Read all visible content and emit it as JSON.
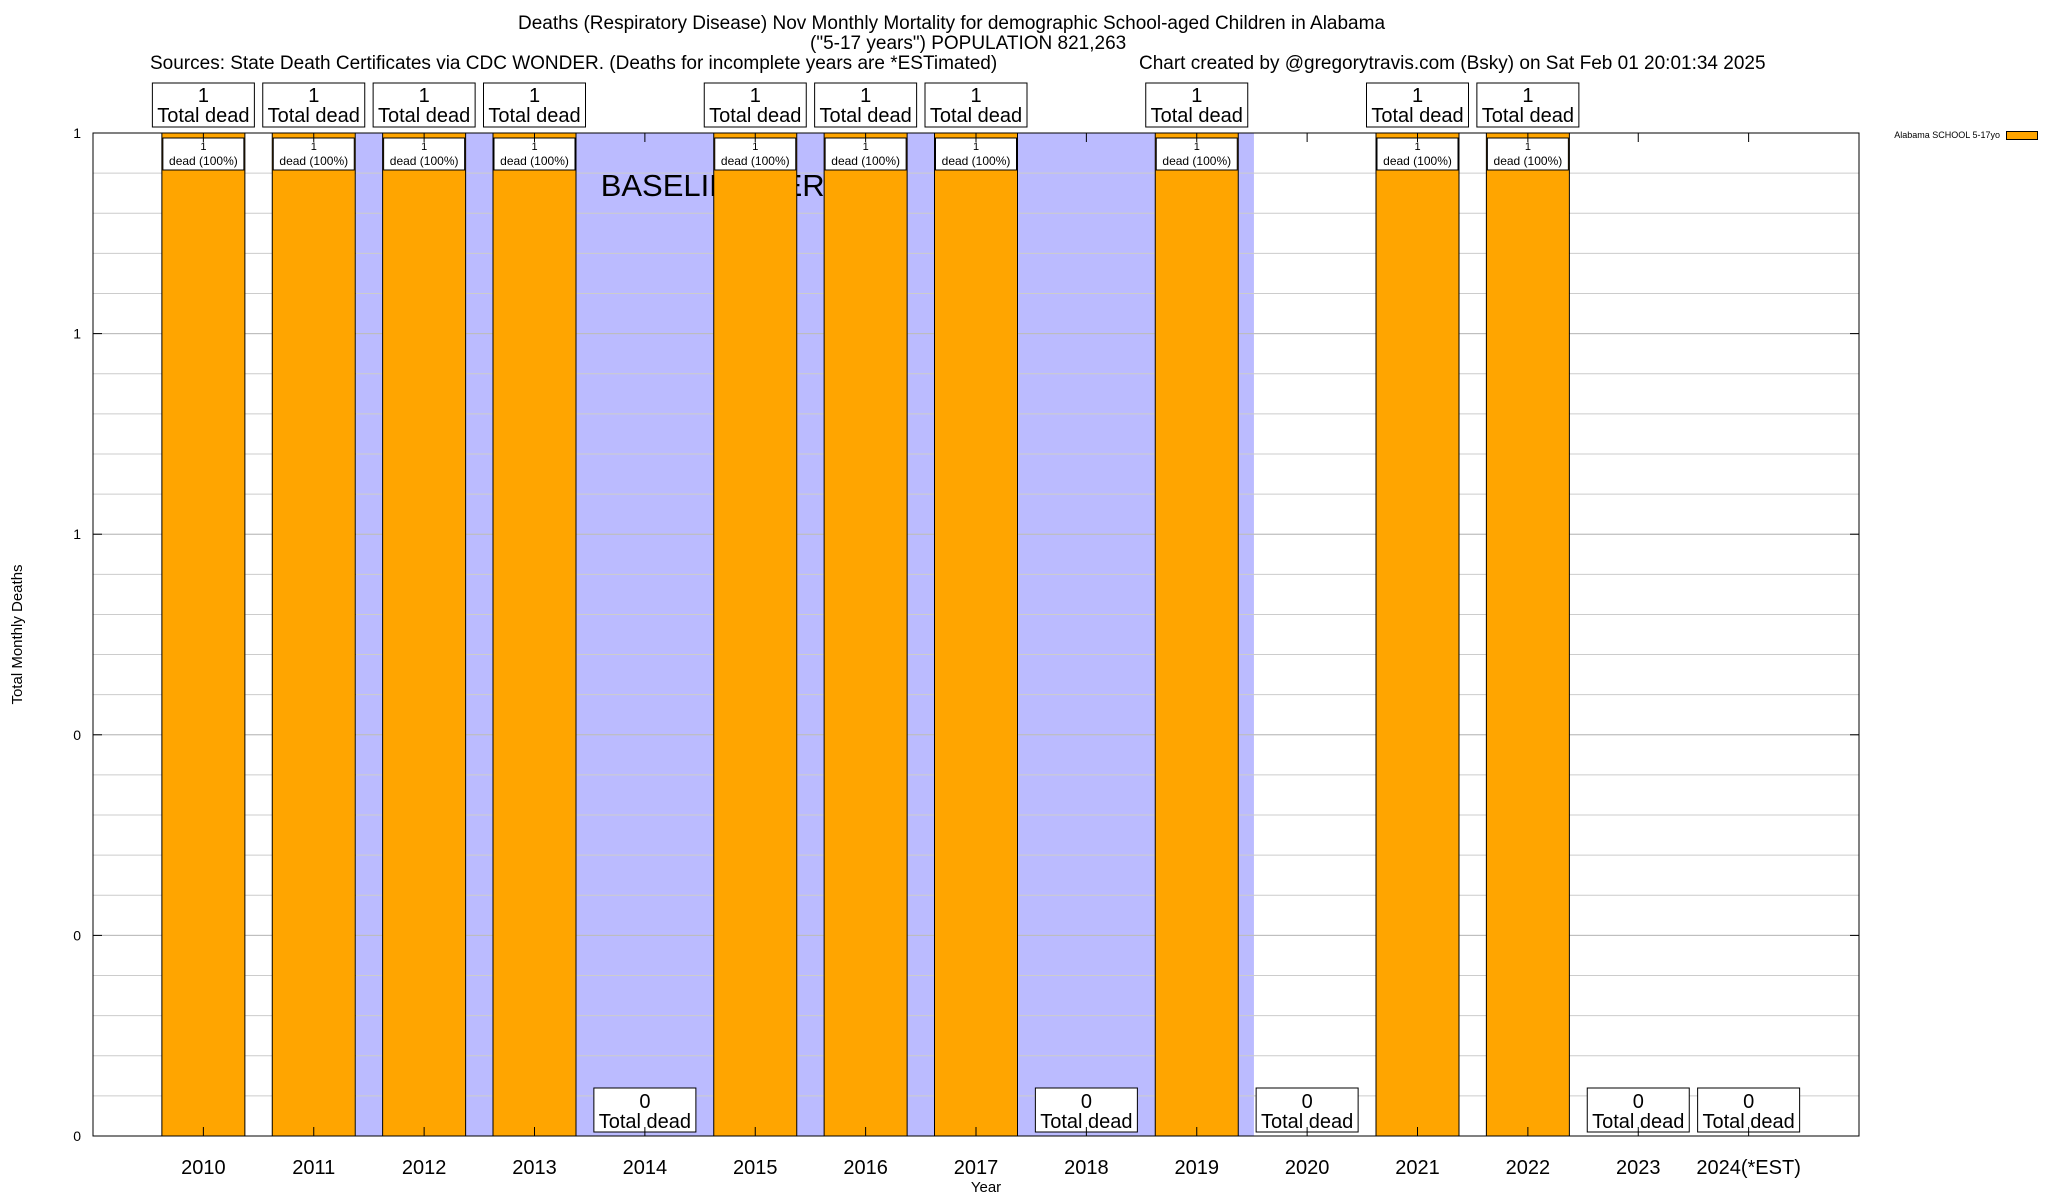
{
  "titles": {
    "line1": "Deaths (Respiratory Disease) Nov Monthly Mortality for demographic School-aged Children in Alabama",
    "line2": "(\"5-17 years\") POPULATION 821,263",
    "sources": "Sources: State Death Certificates via CDC WONDER. (Deaths for incomplete years are *ESTimated)",
    "credit": "Chart created by @gregorytravis.com (Bsky) on Sat Feb 01 20:01:34 2025"
  },
  "chart_data": {
    "type": "bar",
    "xlabel": "Year",
    "ylabel": "Total Monthly Deaths",
    "categories": [
      "2010",
      "2011",
      "2012",
      "2013",
      "2014",
      "2015",
      "2016",
      "2017",
      "2018",
      "2019",
      "2020",
      "2021",
      "2022",
      "2023",
      "2024(*EST)"
    ],
    "series": [
      {
        "name": "Alabama SCHOOL 5-17yo",
        "values": [
          1,
          1,
          1,
          1,
          0,
          1,
          1,
          1,
          0,
          1,
          0,
          1,
          1,
          0,
          0
        ]
      }
    ],
    "total_labels": [
      "1\nTotal dead",
      "1\nTotal dead",
      "1\nTotal dead",
      "1\nTotal dead",
      "0\nTotal dead",
      "1\nTotal dead",
      "1\nTotal dead",
      "1\nTotal dead",
      "0\nTotal dead",
      "1\nTotal dead",
      "0\nTotal dead",
      "1\nTotal dead",
      "1\nTotal dead",
      "0\nTotal dead",
      "0\nTotal dead"
    ],
    "bar_labels": [
      "1\ndead (100%)",
      "1\ndead (100%)",
      "1\ndead (100%)",
      "1\ndead (100%)",
      "",
      "1\ndead (100%)",
      "1\ndead (100%)",
      "1\ndead (100%)",
      "",
      "1\ndead (100%)",
      "",
      "1\ndead (100%)",
      "1\ndead (100%)",
      "",
      ""
    ],
    "ylim": [
      0,
      1
    ],
    "yticks": [
      0,
      0.2,
      0.4,
      0.6,
      0.8,
      1
    ],
    "ytick_labels": [
      "0",
      "0",
      "0",
      "1",
      "1",
      "1"
    ],
    "baseline_period": {
      "label": "BASELINE PERIOD",
      "start": "2012",
      "end": "2019"
    },
    "grid": true,
    "legend_position": "top-right",
    "colors": {
      "bar": "#FFA500",
      "baseline": "#BBBBFF"
    }
  }
}
